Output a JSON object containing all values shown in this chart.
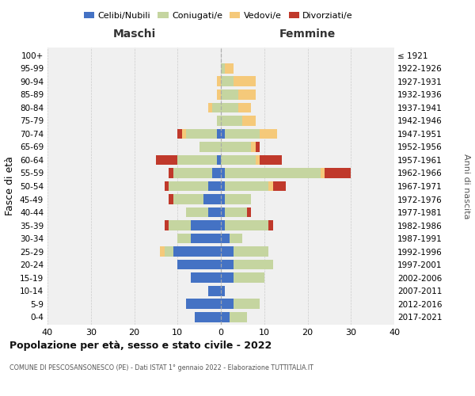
{
  "age_groups": [
    "0-4",
    "5-9",
    "10-14",
    "15-19",
    "20-24",
    "25-29",
    "30-34",
    "35-39",
    "40-44",
    "45-49",
    "50-54",
    "55-59",
    "60-64",
    "65-69",
    "70-74",
    "75-79",
    "80-84",
    "85-89",
    "90-94",
    "95-99",
    "100+"
  ],
  "birth_years": [
    "2017-2021",
    "2012-2016",
    "2007-2011",
    "2002-2006",
    "1997-2001",
    "1992-1996",
    "1987-1991",
    "1982-1986",
    "1977-1981",
    "1972-1976",
    "1967-1971",
    "1962-1966",
    "1957-1961",
    "1952-1956",
    "1947-1951",
    "1942-1946",
    "1937-1941",
    "1932-1936",
    "1927-1931",
    "1922-1926",
    "≤ 1921"
  ],
  "colors": {
    "celibe": "#4472c4",
    "coniugato": "#c5d5a0",
    "vedovo": "#f5c97a",
    "divorziato": "#c0392b"
  },
  "maschi": {
    "celibe": [
      6,
      8,
      3,
      7,
      10,
      11,
      7,
      7,
      3,
      4,
      3,
      2,
      1,
      0,
      1,
      0,
      0,
      0,
      0,
      0,
      0
    ],
    "coniugato": [
      0,
      0,
      0,
      0,
      0,
      2,
      3,
      5,
      5,
      7,
      9,
      9,
      9,
      5,
      7,
      1,
      2,
      0,
      0,
      0,
      0
    ],
    "vedovo": [
      0,
      0,
      0,
      0,
      0,
      1,
      0,
      0,
      0,
      0,
      0,
      0,
      0,
      0,
      1,
      0,
      1,
      1,
      1,
      0,
      0
    ],
    "divorziato": [
      0,
      0,
      0,
      0,
      0,
      0,
      0,
      1,
      0,
      1,
      1,
      1,
      5,
      0,
      1,
      0,
      0,
      0,
      0,
      0,
      0
    ]
  },
  "femmine": {
    "nubile": [
      2,
      3,
      1,
      3,
      3,
      3,
      2,
      1,
      1,
      1,
      1,
      1,
      0,
      0,
      1,
      0,
      0,
      0,
      0,
      0,
      0
    ],
    "coniugata": [
      4,
      6,
      0,
      7,
      9,
      8,
      3,
      10,
      5,
      6,
      10,
      22,
      8,
      7,
      8,
      5,
      4,
      4,
      3,
      1,
      0
    ],
    "vedova": [
      0,
      0,
      0,
      0,
      0,
      0,
      0,
      0,
      0,
      0,
      1,
      1,
      1,
      1,
      4,
      3,
      3,
      4,
      5,
      2,
      0
    ],
    "divorziata": [
      0,
      0,
      0,
      0,
      0,
      0,
      0,
      1,
      1,
      0,
      3,
      6,
      5,
      1,
      0,
      0,
      0,
      0,
      0,
      0,
      0
    ]
  },
  "title": "Popolazione per età, sesso e stato civile - 2022",
  "subtitle": "COMUNE DI PESCOSANSONESCO (PE) - Dati ISTAT 1° gennaio 2022 - Elaborazione TUTTITALIA.IT",
  "xlabel_maschi": "Maschi",
  "xlabel_femmine": "Femmine",
  "ylabel_left": "Fasce di età",
  "ylabel_right": "Anni di nascita",
  "xlim": 40,
  "bg_color": "#f0f0f0"
}
